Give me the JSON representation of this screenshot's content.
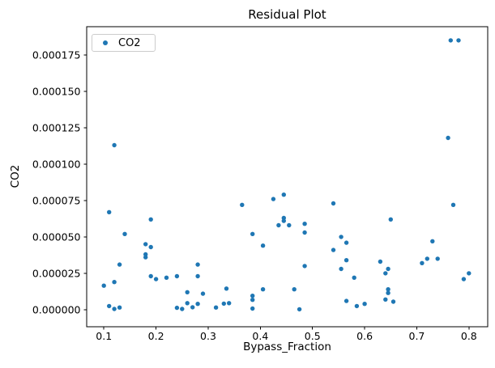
{
  "chart": {
    "title": "Residual Plot",
    "xlabel": "Bypass_Fraction",
    "ylabel": "CO2",
    "legend": {
      "label": "CO2"
    }
  },
  "chart_data": {
    "type": "scatter",
    "title": "Residual Plot",
    "xlabel": "Bypass_Fraction",
    "ylabel": "CO2",
    "legend_entries": [
      "CO2"
    ],
    "legend_position": "upper left",
    "grid": false,
    "marker_color": "#1f77b4",
    "axis_color": "#000000",
    "xlim": [
      0.067,
      0.836
    ],
    "ylim": [
      -1.17e-05,
      0.0001944
    ],
    "xticks": {
      "values": [
        0.1,
        0.2,
        0.3,
        0.4,
        0.5,
        0.6,
        0.7,
        0.8
      ],
      "labels": [
        "0.1",
        "0.2",
        "0.3",
        "0.4",
        "0.5",
        "0.6",
        "0.7",
        "0.8"
      ]
    },
    "yticks": {
      "values": [
        0.0,
        2.5e-05,
        5e-05,
        7.5e-05,
        0.0001,
        0.000125,
        0.00015,
        0.000175
      ],
      "labels": [
        "0.000000",
        "0.000025",
        "0.000050",
        "0.000075",
        "0.000100",
        "0.000125",
        "0.000150",
        "0.000175"
      ]
    },
    "series": [
      {
        "name": "CO2",
        "points": [
          [
            0.1,
            1.65e-05
          ],
          [
            0.11,
            6.7e-05
          ],
          [
            0.11,
            2.5e-06
          ],
          [
            0.12,
            0.000113
          ],
          [
            0.12,
            1.9e-05
          ],
          [
            0.12,
            5e-07
          ],
          [
            0.13,
            3.1e-05
          ],
          [
            0.13,
            1.5e-06
          ],
          [
            0.14,
            5.2e-05
          ],
          [
            0.18,
            4.5e-05
          ],
          [
            0.18,
            3.8e-05
          ],
          [
            0.18,
            3.6e-05
          ],
          [
            0.19,
            6.2e-05
          ],
          [
            0.19,
            4.3e-05
          ],
          [
            0.19,
            2.3e-05
          ],
          [
            0.2,
            2.1e-05
          ],
          [
            0.22,
            2.2e-05
          ],
          [
            0.24,
            2.3e-05
          ],
          [
            0.24,
            1.3e-06
          ],
          [
            0.25,
            5e-07
          ],
          [
            0.26,
            1.2e-05
          ],
          [
            0.26,
            4.5e-06
          ],
          [
            0.27,
            1.7e-06
          ],
          [
            0.28,
            3.1e-05
          ],
          [
            0.28,
            2.3e-05
          ],
          [
            0.28,
            4e-06
          ],
          [
            0.29,
            1.1e-05
          ],
          [
            0.315,
            1.5e-06
          ],
          [
            0.335,
            1.45e-05
          ],
          [
            0.33,
            4.2e-06
          ],
          [
            0.34,
            4.5e-06
          ],
          [
            0.365,
            7.2e-05
          ],
          [
            0.385,
            5.2e-05
          ],
          [
            0.385,
            9.6e-06
          ],
          [
            0.385,
            6.8e-06
          ],
          [
            0.385,
            8e-07
          ],
          [
            0.405,
            4.4e-05
          ],
          [
            0.405,
            1.4e-05
          ],
          [
            0.425,
            7.6e-05
          ],
          [
            0.435,
            5.8e-05
          ],
          [
            0.445,
            7.9e-05
          ],
          [
            0.445,
            6.3e-05
          ],
          [
            0.445,
            6.1e-05
          ],
          [
            0.455,
            5.8e-05
          ],
          [
            0.465,
            1.4e-05
          ],
          [
            0.475,
            3e-07
          ],
          [
            0.485,
            5.9e-05
          ],
          [
            0.485,
            5.3e-05
          ],
          [
            0.485,
            3e-05
          ],
          [
            0.54,
            7.3e-05
          ],
          [
            0.54,
            4.1e-05
          ],
          [
            0.555,
            5e-05
          ],
          [
            0.555,
            2.8e-05
          ],
          [
            0.565,
            4.6e-05
          ],
          [
            0.565,
            3.4e-05
          ],
          [
            0.565,
            6e-06
          ],
          [
            0.58,
            2.2e-05
          ],
          [
            0.585,
            2.5e-06
          ],
          [
            0.6,
            4e-06
          ],
          [
            0.63,
            3.3e-05
          ],
          [
            0.64,
            2.5e-05
          ],
          [
            0.64,
            7e-06
          ],
          [
            0.645,
            2.8e-05
          ],
          [
            0.645,
            1.4e-05
          ],
          [
            0.645,
            1.15e-05
          ],
          [
            0.65,
            6.2e-05
          ],
          [
            0.655,
            5.5e-06
          ],
          [
            0.71,
            3.2e-05
          ],
          [
            0.72,
            3.5e-05
          ],
          [
            0.73,
            4.7e-05
          ],
          [
            0.74,
            3.5e-05
          ],
          [
            0.76,
            0.000118
          ],
          [
            0.765,
            0.000185
          ],
          [
            0.77,
            7.2e-05
          ],
          [
            0.78,
            0.000185
          ],
          [
            0.79,
            2.1e-05
          ],
          [
            0.8,
            2.5e-05
          ]
        ]
      }
    ]
  }
}
